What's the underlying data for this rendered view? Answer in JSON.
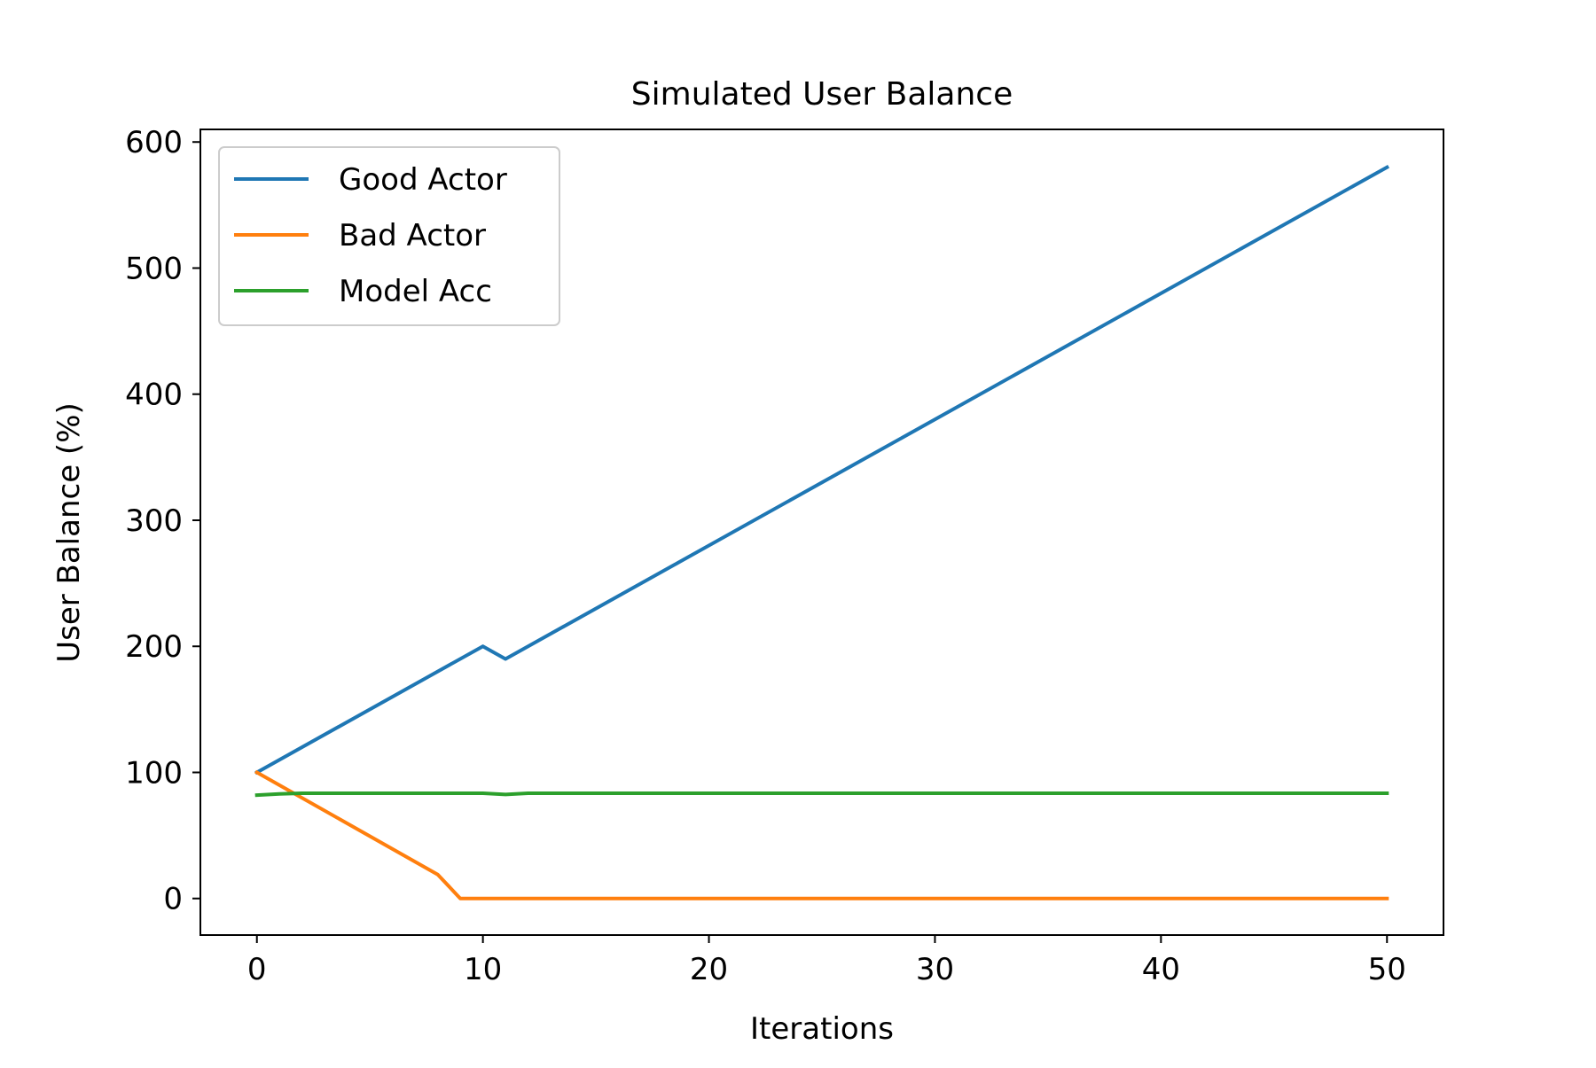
{
  "chart_data": {
    "type": "line",
    "title": "Simulated User Balance",
    "xlabel": "Iterations",
    "ylabel": "User Balance (%)",
    "xlim": [
      -2.5,
      52.5
    ],
    "ylim": [
      -29,
      610
    ],
    "xticks": [
      0,
      10,
      20,
      30,
      40,
      50
    ],
    "yticks": [
      0,
      100,
      200,
      300,
      400,
      500,
      600
    ],
    "grid": false,
    "legend_position": "upper-left",
    "series": [
      {
        "name": "Good Actor",
        "color": "#1f77b4",
        "x": [
          0,
          10,
          11,
          50
        ],
        "y": [
          100,
          200,
          190,
          580
        ]
      },
      {
        "name": "Bad Actor",
        "color": "#ff7f0e",
        "x": [
          0,
          8,
          9,
          50
        ],
        "y": [
          100,
          19,
          0,
          0
        ]
      },
      {
        "name": "Model Acc",
        "color": "#2ca02c",
        "x": [
          0,
          1,
          2,
          3,
          4,
          5,
          6,
          7,
          8,
          9,
          10,
          11,
          12,
          13,
          14,
          15,
          16,
          17,
          18,
          19,
          20,
          21,
          22,
          23,
          24,
          25,
          26,
          27,
          28,
          29,
          30,
          31,
          32,
          33,
          34,
          35,
          36,
          37,
          38,
          39,
          40,
          41,
          42,
          43,
          44,
          45,
          46,
          47,
          48,
          49,
          50
        ],
        "y": [
          82,
          83,
          83.5,
          83.5,
          83.5,
          83.5,
          83.5,
          83.5,
          83.5,
          83.5,
          83.5,
          82.5,
          83.5,
          83.5,
          83.5,
          83.5,
          83.5,
          83.5,
          83.5,
          83.5,
          83.5,
          83.5,
          83.5,
          83.5,
          83.5,
          83.5,
          83.5,
          83.5,
          83.5,
          83.5,
          83.5,
          83.5,
          83.5,
          83.5,
          83.5,
          83.5,
          83.5,
          83.5,
          83.5,
          83.5,
          83.5,
          83.5,
          83.5,
          83.5,
          83.5,
          83.5,
          83.5,
          83.5,
          83.5,
          83.5,
          83.5
        ]
      }
    ]
  }
}
